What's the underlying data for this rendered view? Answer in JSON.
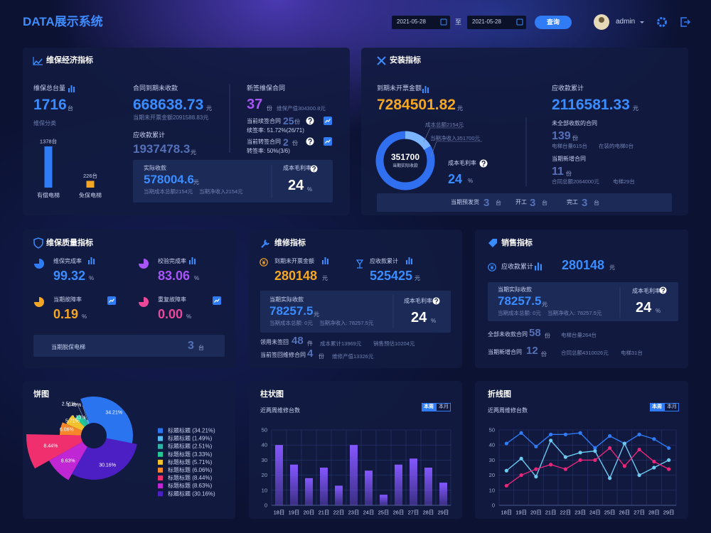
{
  "header": {
    "title": "DATA展示系统",
    "date_from": "2021-05-28",
    "date_sep": "至",
    "date_to": "2021-05-28",
    "query": "查询",
    "user": "admin"
  },
  "economy": {
    "title": "维保经济指标",
    "total_label": "维保总台量",
    "total": "1716",
    "total_unit": "台",
    "class_label": "维保分类",
    "class_chart": {
      "type": "bar",
      "categories": [
        "有偿电梯",
        "免保电梯"
      ],
      "values": [
        1378,
        226
      ],
      "value_labels": [
        "1378台",
        "226台"
      ],
      "colors": [
        "#2f7cf6",
        "#f5a623"
      ]
    },
    "due_label": "合同到期未收款",
    "due": "668638.73",
    "due_unit": "元",
    "due_note": "当期未开票金额2091588.83元",
    "recv_label": "应收款累计",
    "recv": "1937478.3",
    "recv_unit": "元",
    "actual_label": "实际收款",
    "actual": "578004.6",
    "actual_unit": "元",
    "actual_cost": "当期成本总额2154元",
    "actual_net": "当期净收入2154元",
    "margin_label": "成本毛利率",
    "margin": "24",
    "margin_unit": "%",
    "new_label": "新签维保合同",
    "new": "37",
    "new_unit": "份",
    "new_note": "维保产值304300.8元",
    "renew_label": "当前续签合同",
    "renew": "25",
    "renew_unit": "份",
    "renew_rate": "续签率: 51.72%(26/71)",
    "transfer_label": "当前转签合同",
    "transfer": "2",
    "transfer_unit": "份",
    "transfer_rate": "转签率: 50%(3/6)"
  },
  "install": {
    "title": "安装指标",
    "due_label": "到期未开票金额",
    "due": "7284501.82",
    "due_unit": "元",
    "donut": {
      "value": "351700",
      "label": "当期实际收款",
      "cost": "成本总额2154元",
      "net": "当期净收入351700元"
    },
    "margin_label": "成本毛利率",
    "margin": "24",
    "margin_unit": "%",
    "recv_label": "应收款累计",
    "recv": "2116581.33",
    "recv_unit": "元",
    "unpaid_label": "未全部收款的合同",
    "unpaid": "139",
    "unpaid_unit": "份",
    "unpaid_lifts": "电梯台量615台",
    "unpaid_installing": "在装的电梯0台",
    "new_label": "当期新增合同",
    "new": "11",
    "new_unit": "份",
    "new_total": "合同总额2064000元",
    "new_lifts": "电梯29台",
    "ship_label": "当期预发货",
    "ship": "3",
    "ship_unit": "台",
    "start_label": "开工",
    "start": "3",
    "start_unit": "台",
    "done_label": "完工",
    "done": "3",
    "done_unit": "台"
  },
  "quality": {
    "title": "维保质量指标",
    "items": [
      {
        "label": "维保完成率",
        "value": "99.32",
        "unit": "%"
      },
      {
        "label": "校验完成率",
        "value": "83.06",
        "unit": "%"
      },
      {
        "label": "当期故障率",
        "value": "0.19",
        "unit": "%"
      },
      {
        "label": "重复故障率",
        "value": "0.00",
        "unit": "%"
      }
    ],
    "offline_label": "当期脱保电梯",
    "offline": "3",
    "offline_unit": "台"
  },
  "repair": {
    "title": "维修指标",
    "due_label": "到期未开票金额",
    "due": "280148",
    "due_unit": "元",
    "recv_label": "应收款累计",
    "recv": "525425",
    "recv_unit": "元",
    "actual_label": "当期实际收款",
    "actual": "78257.5",
    "actual_unit": "元",
    "actual_cost": "当期成本总额: 0元",
    "actual_net": "当期净收入: 78257.5元",
    "margin_label": "成本毛利率",
    "margin": "24",
    "margin_unit": "%",
    "borrow_label": "领用未签回",
    "borrow": "48",
    "borrow_unit": "件",
    "borrow_cost": "成本累计13969元",
    "borrow_sale": "销售预估10204元",
    "signed_label": "当前签回维修合同",
    "signed": "4",
    "signed_unit": "份",
    "signed_value": "维修产值13326元"
  },
  "sales": {
    "title": "销售指标",
    "recv_label": "应收款累计",
    "recv": "280148",
    "recv_unit": "元",
    "actual_label": "当期实际收款",
    "actual": "78257.5",
    "actual_unit": "元",
    "actual_cost": "当期成本总额: 0元",
    "actual_net": "当期净收入: 78257.5元",
    "margin_label": "成本毛利率",
    "margin": "24",
    "margin_unit": "%",
    "unpaid_label": "全部未收款合同",
    "unpaid": "58",
    "unpaid_unit": "份",
    "unpaid_lifts": "电梯台量264台",
    "new_label": "当期新增合同",
    "new": "12",
    "new_unit": "份",
    "new_total": "合同总额4310026元",
    "new_lifts": "电梯31台"
  },
  "chart_data": [
    {
      "type": "pie",
      "title": "饼图",
      "values": [
        34.21,
        1.49,
        2.51,
        3.33,
        5.71,
        6.06,
        8.44,
        8.63,
        30.16
      ],
      "value_labels": [
        "34.21%",
        "1.49%",
        "2.51%",
        "3.33%",
        "5.71%",
        "6.06%",
        "8.44%",
        "8.63%",
        "30.16%"
      ],
      "legend_labels": [
        "标题标题 (34.21%)",
        "标题标题 (1.49%)",
        "标题标题 (2.51%)",
        "标题标题 (3.33%)",
        "标题标题 (5.71%)",
        "标题标题 (6.06%)",
        "标题标题 (8.44%)",
        "标题标题 (8.63%)",
        "标题标题 (30.16%)"
      ],
      "colors": [
        "#2a74f0",
        "#58b8f0",
        "#2fb3a6",
        "#20c997",
        "#f2c12e",
        "#f7852a",
        "#f0306e",
        "#c026d3",
        "#4c1fc4"
      ]
    },
    {
      "type": "bar",
      "title": "柱状图",
      "subtitle": "近两周维修台数",
      "toggles": [
        "本周",
        "本月"
      ],
      "categories": [
        "18日",
        "19日",
        "20日",
        "21日",
        "22日",
        "23日",
        "24日",
        "25日",
        "26日",
        "27日",
        "28日",
        "29日"
      ],
      "values": [
        40,
        27,
        18,
        25,
        13,
        40,
        23,
        7,
        27,
        31,
        25,
        15
      ],
      "ylim": [
        0,
        50
      ],
      "yticks": [
        0,
        10,
        20,
        30,
        40,
        50
      ],
      "color": "#8457ff",
      "grid": true
    },
    {
      "type": "line",
      "title": "折线图",
      "subtitle": "近两周维修台数",
      "toggles": [
        "本周",
        "本月"
      ],
      "categories": [
        "18日",
        "19日",
        "20日",
        "21日",
        "22日",
        "23日",
        "24日",
        "25日",
        "26日",
        "27日",
        "28日",
        "29日"
      ],
      "series": [
        {
          "color": "#2f7cf6",
          "values": [
            41,
            48,
            39,
            47,
            47,
            48,
            38,
            46,
            41,
            47,
            44,
            38
          ]
        },
        {
          "color": "#6cc9f0",
          "values": [
            23,
            31,
            19,
            43,
            32,
            35,
            36,
            18,
            41,
            20,
            25,
            30
          ]
        },
        {
          "color": "#e8267a",
          "values": [
            13,
            20,
            24,
            27,
            24,
            30,
            30,
            38,
            26,
            37,
            29,
            24
          ]
        }
      ],
      "ylim": [
        0,
        50
      ],
      "yticks": [
        0,
        10,
        20,
        30,
        40,
        50
      ],
      "grid": true
    }
  ]
}
